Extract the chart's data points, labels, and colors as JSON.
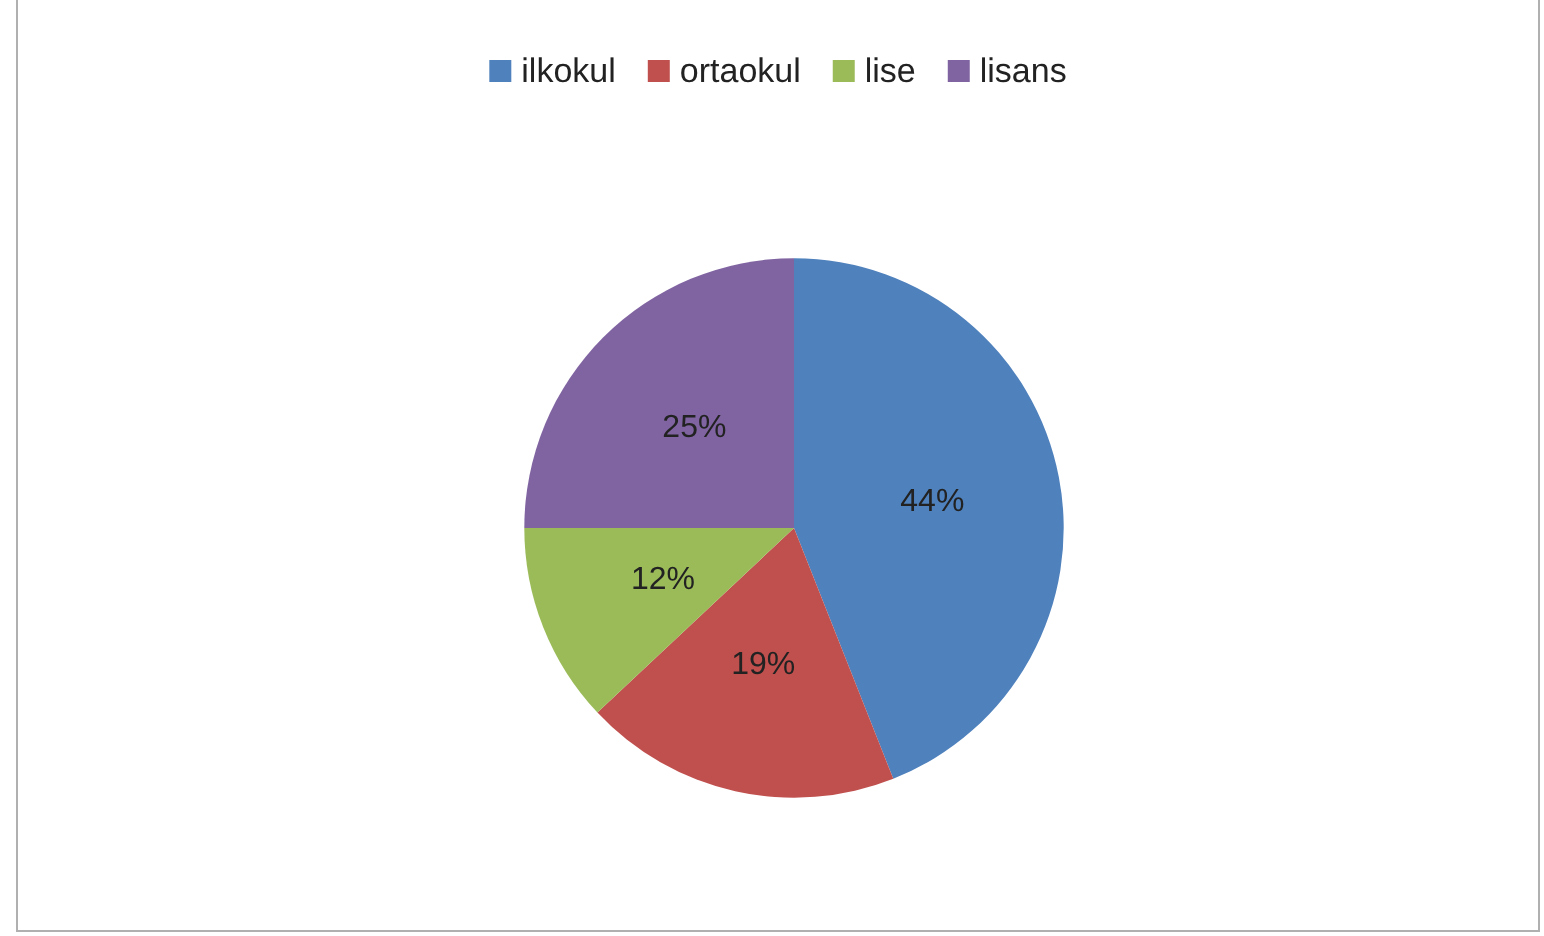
{
  "chart_data": {
    "type": "pie",
    "categories": [
      "ilkokul",
      "ortaokul",
      "lise",
      "lisans"
    ],
    "values": [
      44,
      19,
      12,
      25
    ],
    "colors": [
      "#4f81bd",
      "#c0504d",
      "#9bbb59",
      "#8064a2"
    ],
    "value_labels": [
      "44%",
      "19%",
      "12%",
      "25%"
    ],
    "legend": "top"
  }
}
